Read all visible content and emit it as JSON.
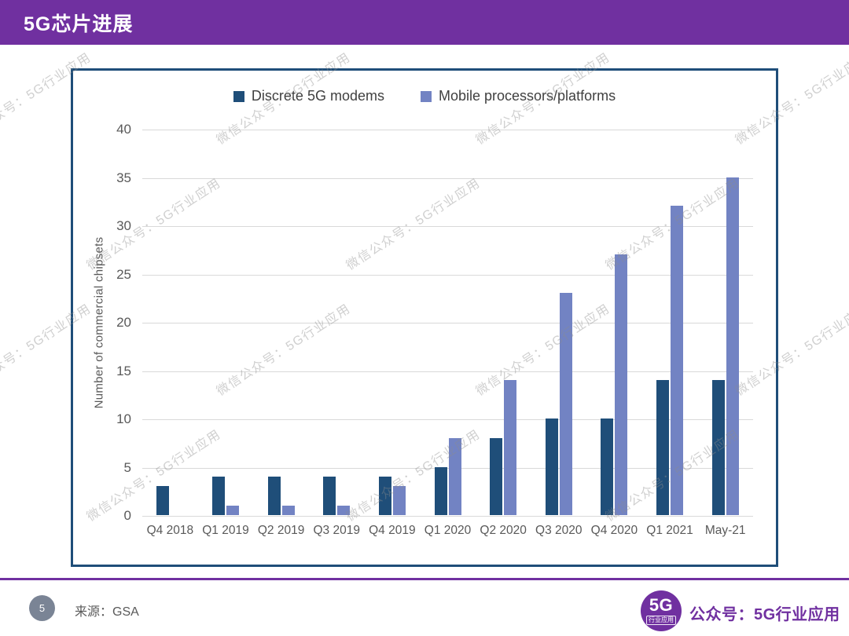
{
  "header": {
    "title": "5G芯片进展",
    "bg_color": "#7030A0"
  },
  "chart_data": {
    "type": "bar",
    "title": "",
    "categories": [
      "Q4 2018",
      "Q1 2019",
      "Q2 2019",
      "Q3 2019",
      "Q4 2019",
      "Q1 2020",
      "Q2 2020",
      "Q3 2020",
      "Q4 2020",
      "Q1 2021",
      "May-21"
    ],
    "series": [
      {
        "name": "Discrete 5G modems",
        "color": "#1F4E79",
        "values": [
          3,
          4,
          4,
          4,
          4,
          5,
          8,
          10,
          10,
          14,
          14
        ]
      },
      {
        "name": "Mobile processors/platforms",
        "color": "#7283C3",
        "values": [
          0,
          1,
          1,
          1,
          3,
          8,
          14,
          23,
          27,
          32,
          35
        ]
      }
    ],
    "xlabel": "",
    "ylabel": "Number of commercial chipsets",
    "ylim": [
      0,
      40
    ],
    "y_ticks": [
      0,
      5,
      10,
      15,
      20,
      25,
      30,
      35,
      40
    ],
    "grid": "horizontal",
    "grid_color": "#D9D9D9",
    "legend_position": "top-center",
    "frame_border_color": "#1F4E79"
  },
  "watermark": {
    "text": "微信公众号：5G行业应用"
  },
  "footer": {
    "page_number": "5",
    "source_label": "来源：GSA",
    "logo_main": "5G",
    "logo_sub": "行业应用",
    "account_label": "公众号：5G行业应用",
    "accent_color": "#7030A0"
  }
}
